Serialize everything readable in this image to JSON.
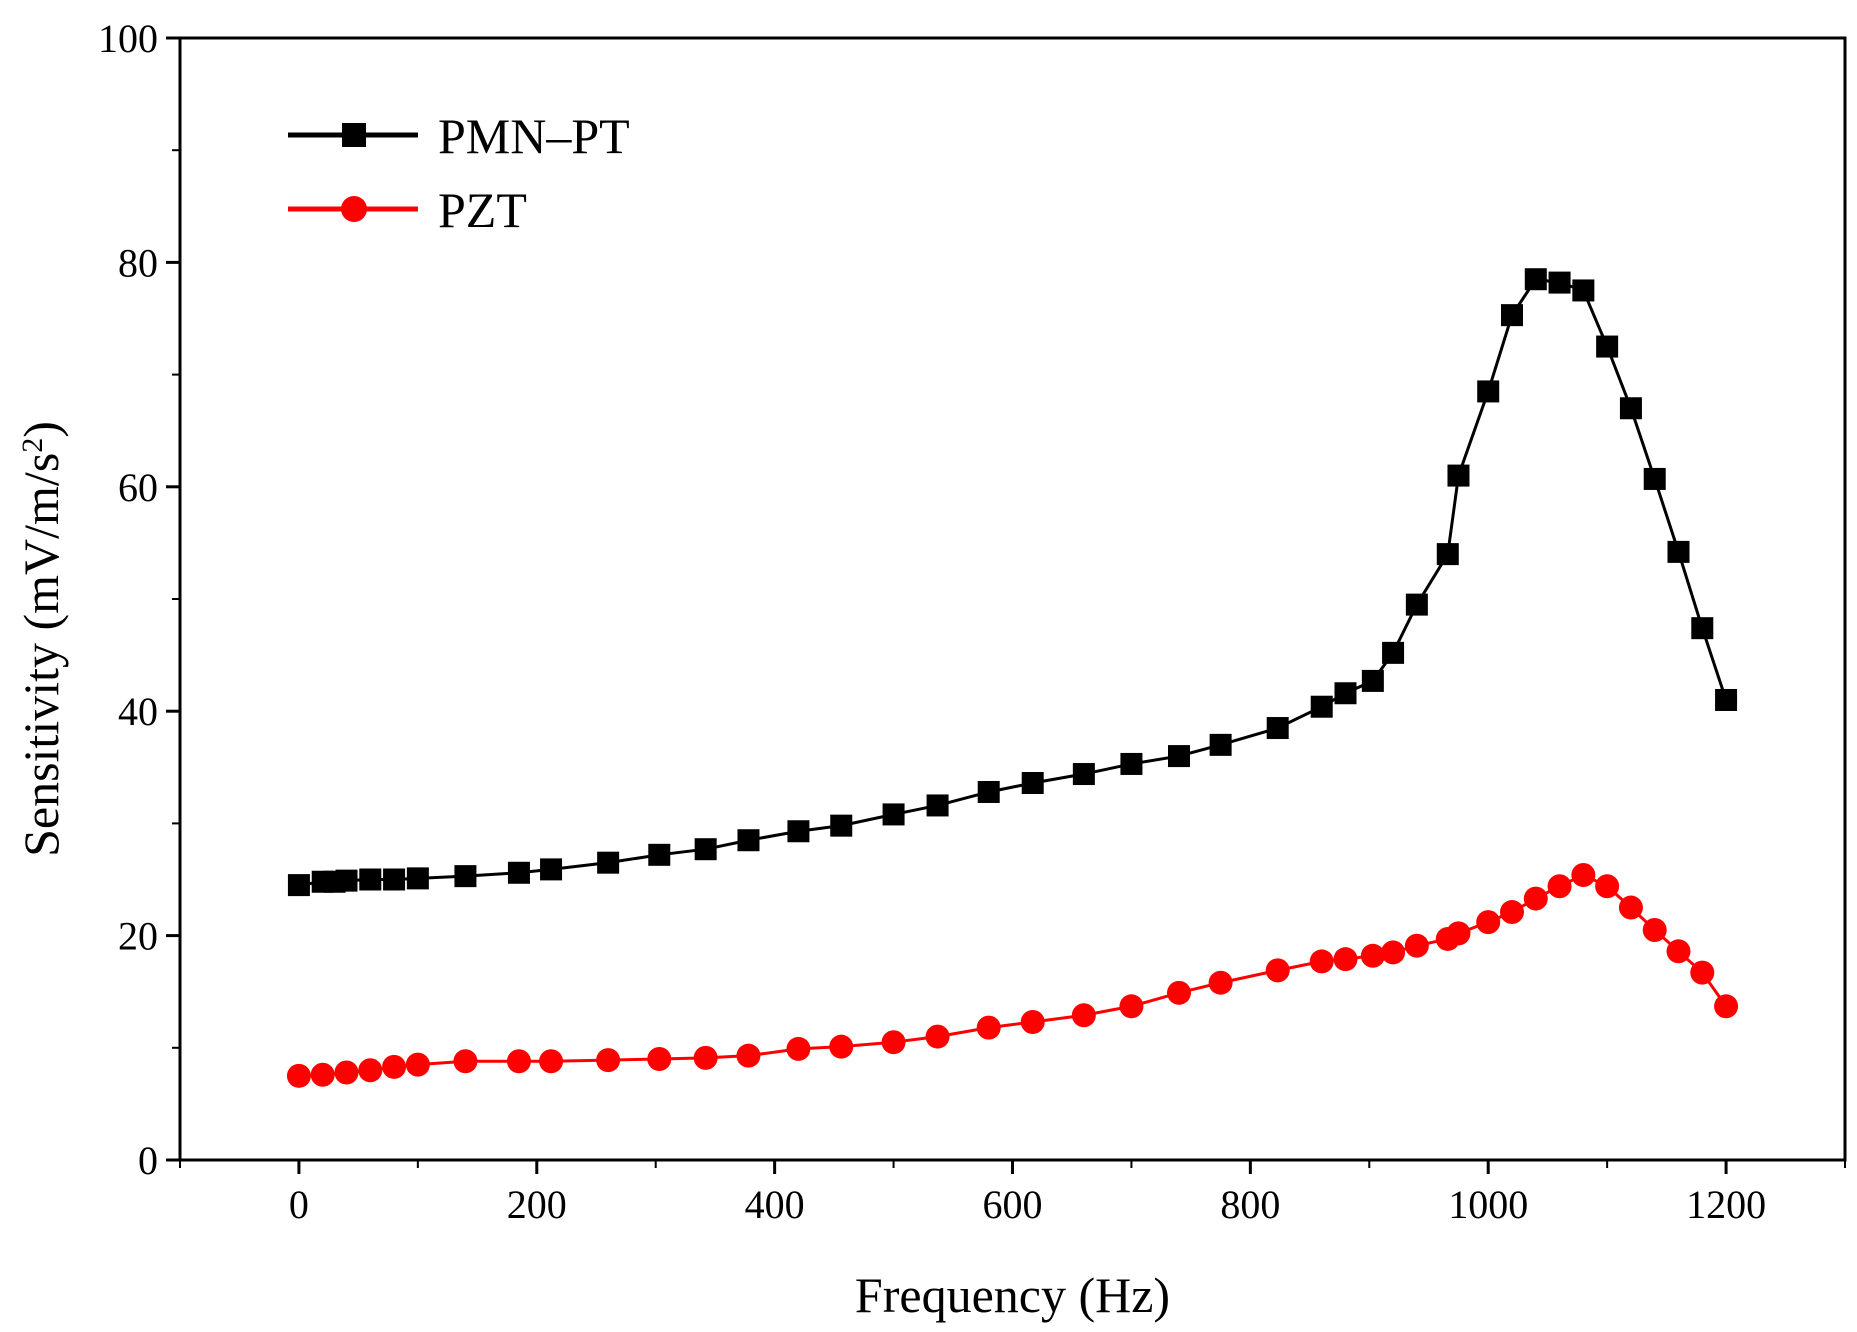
{
  "chart_data": {
    "type": "line",
    "title": "",
    "xlabel": "Frequency (Hz)",
    "ylabel": "Sensitivity (mV/m/s",
    "ylabel_superscript": "2",
    "ylabel_suffix": ")",
    "xlim": [
      -100,
      1300
    ],
    "ylim": [
      0,
      100
    ],
    "xticks": [
      0,
      200,
      400,
      600,
      800,
      1000,
      1200
    ],
    "yticks": [
      0,
      20,
      40,
      60,
      80,
      100
    ],
    "grid": false,
    "legend_position": "top-left",
    "series": [
      {
        "name": "PMN–PT",
        "color": "#000000",
        "marker": "square",
        "x": [
          0,
          20,
          30,
          40,
          60,
          80,
          100,
          140,
          185,
          212,
          260,
          303,
          342,
          378,
          420,
          456,
          500,
          537,
          580,
          617,
          660,
          700,
          740,
          775,
          823,
          860,
          880,
          903,
          920,
          940,
          966,
          975,
          1000,
          1020,
          1040,
          1060,
          1080,
          1100,
          1120,
          1140,
          1160,
          1180,
          1200
        ],
        "y": [
          24.5,
          24.8,
          24.8,
          24.9,
          25.0,
          25.0,
          25.1,
          25.3,
          25.6,
          25.9,
          26.5,
          27.2,
          27.7,
          28.5,
          29.3,
          29.8,
          30.8,
          31.6,
          32.8,
          33.6,
          34.4,
          35.3,
          36.0,
          37.0,
          38.5,
          40.4,
          41.6,
          42.7,
          45.2,
          49.5,
          54.0,
          61.0,
          68.5,
          75.3,
          78.5,
          78.2,
          77.5,
          72.5,
          67.0,
          60.7,
          54.2,
          47.4,
          41.0
        ]
      },
      {
        "name": "PZT",
        "color": "#ff0000",
        "marker": "circle",
        "x": [
          0,
          20,
          40,
          60,
          80,
          100,
          140,
          185,
          212,
          260,
          303,
          342,
          378,
          420,
          456,
          500,
          537,
          580,
          617,
          660,
          700,
          740,
          775,
          823,
          860,
          880,
          903,
          920,
          940,
          966,
          975,
          1000,
          1020,
          1040,
          1060,
          1080,
          1100,
          1120,
          1140,
          1160,
          1180,
          1200
        ],
        "y": [
          7.5,
          7.6,
          7.8,
          8.0,
          8.3,
          8.5,
          8.8,
          8.8,
          8.8,
          8.9,
          9.0,
          9.1,
          9.3,
          9.9,
          10.1,
          10.5,
          11.0,
          11.8,
          12.3,
          12.9,
          13.7,
          14.9,
          15.8,
          16.9,
          17.7,
          17.9,
          18.2,
          18.5,
          19.1,
          19.7,
          20.2,
          21.2,
          22.1,
          23.3,
          24.4,
          25.4,
          24.4,
          22.5,
          20.5,
          18.6,
          16.7,
          13.7
        ]
      }
    ]
  }
}
